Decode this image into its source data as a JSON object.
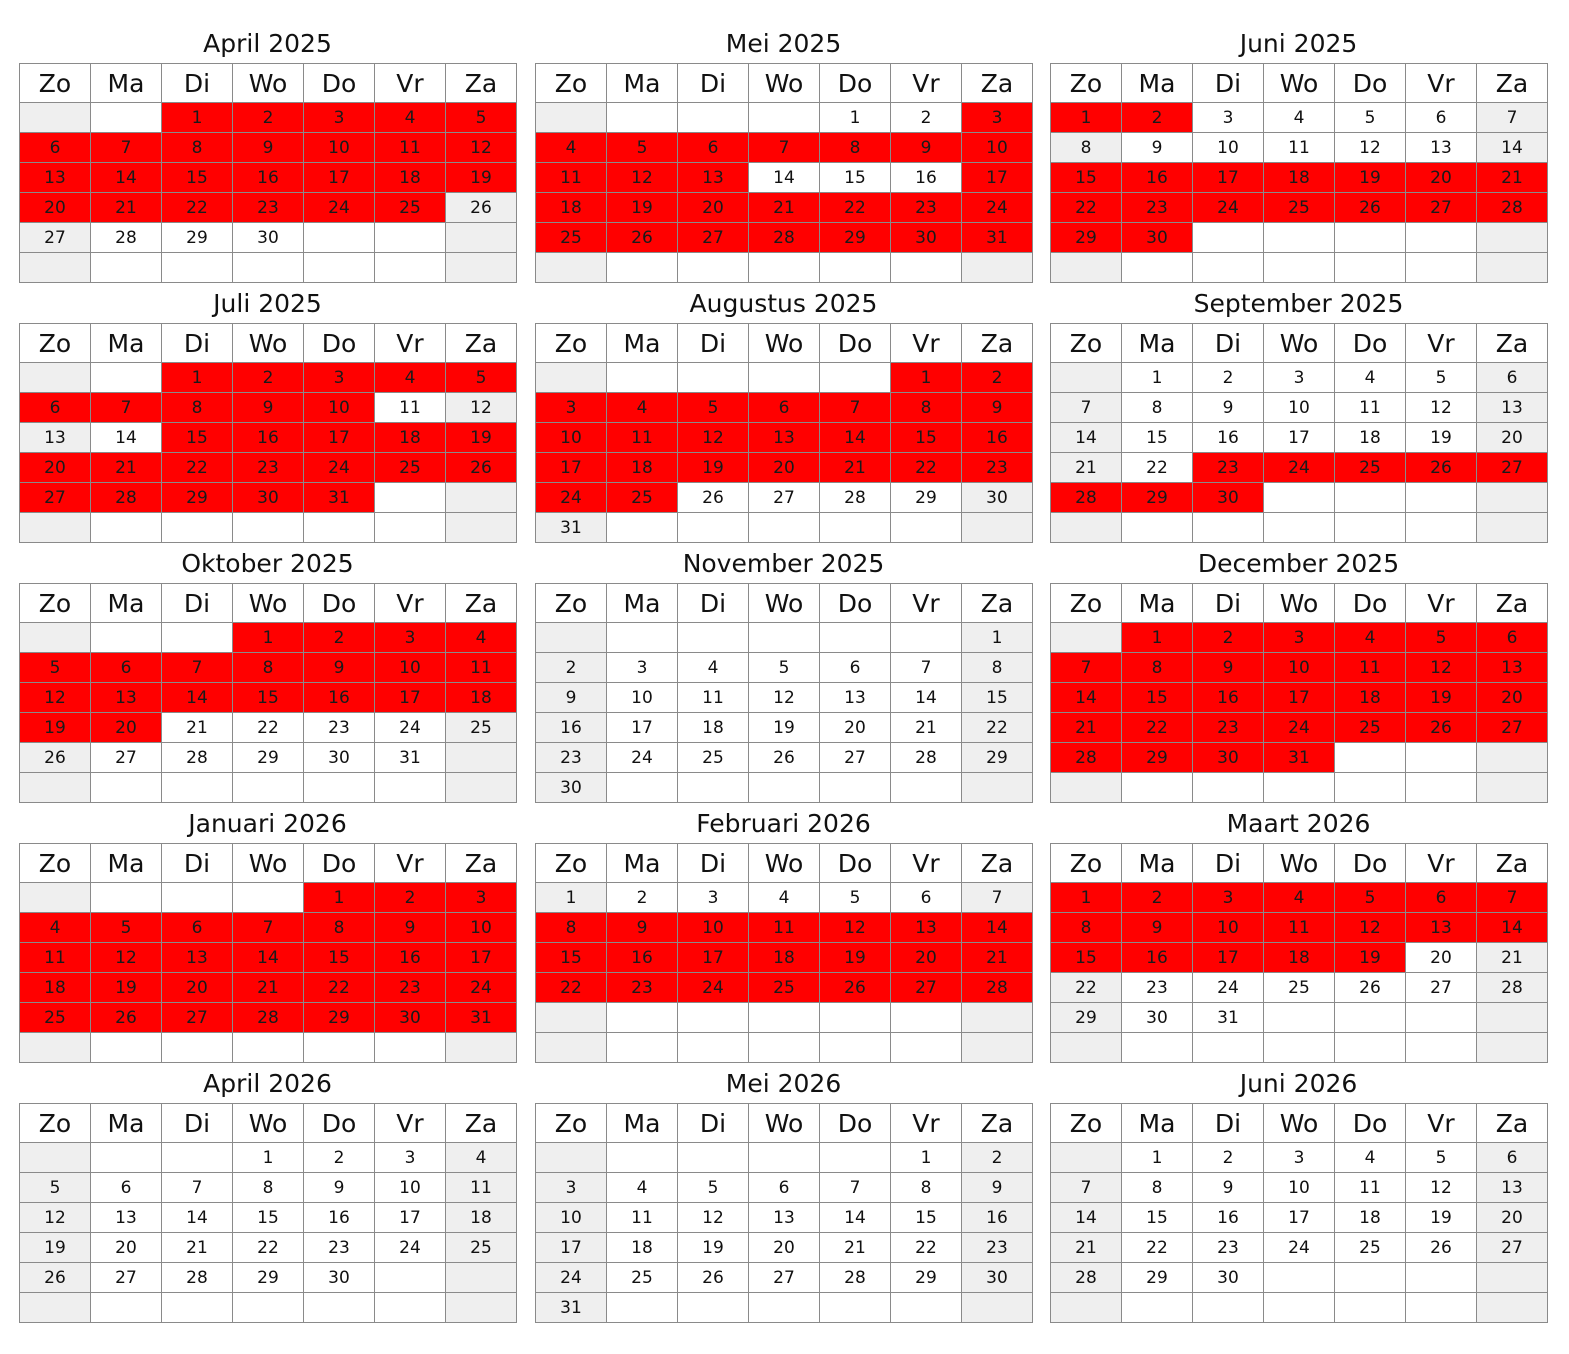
{
  "weekdays": [
    "Zo",
    "Ma",
    "Di",
    "Wo",
    "Do",
    "Vr",
    "Za"
  ],
  "highlight_color": "#ff0000",
  "weekend_color": "#efefef",
  "months": [
    {
      "title": "April 2025",
      "start": 2,
      "days": 30,
      "highlight": [
        1,
        2,
        3,
        4,
        5,
        6,
        7,
        8,
        9,
        10,
        11,
        12,
        13,
        14,
        15,
        16,
        17,
        18,
        19,
        20,
        21,
        22,
        23,
        24,
        25
      ]
    },
    {
      "title": "Mei 2025",
      "start": 4,
      "days": 31,
      "highlight": [
        3,
        4,
        5,
        6,
        7,
        8,
        9,
        10,
        11,
        12,
        13,
        17,
        18,
        19,
        20,
        21,
        22,
        23,
        24,
        25,
        26,
        27,
        28,
        29,
        30,
        31
      ]
    },
    {
      "title": "Juni 2025",
      "start": 0,
      "days": 30,
      "highlight": [
        1,
        2,
        15,
        16,
        17,
        18,
        19,
        20,
        21,
        22,
        23,
        24,
        25,
        26,
        27,
        28,
        29,
        30
      ]
    },
    {
      "title": "Juli 2025",
      "start": 2,
      "days": 31,
      "highlight": [
        1,
        2,
        3,
        4,
        5,
        6,
        7,
        8,
        9,
        10,
        15,
        16,
        17,
        18,
        19,
        20,
        21,
        22,
        23,
        24,
        25,
        26,
        27,
        28,
        29,
        30,
        31
      ]
    },
    {
      "title": "Augustus 2025",
      "start": 5,
      "days": 31,
      "highlight": [
        1,
        2,
        3,
        4,
        5,
        6,
        7,
        8,
        9,
        10,
        11,
        12,
        13,
        14,
        15,
        16,
        17,
        18,
        19,
        20,
        21,
        22,
        23,
        24,
        25
      ]
    },
    {
      "title": "September 2025",
      "start": 1,
      "days": 30,
      "highlight": [
        23,
        24,
        25,
        26,
        27,
        28,
        29,
        30
      ]
    },
    {
      "title": "Oktober 2025",
      "start": 3,
      "days": 31,
      "highlight": [
        1,
        2,
        3,
        4,
        5,
        6,
        7,
        8,
        9,
        10,
        11,
        12,
        13,
        14,
        15,
        16,
        17,
        18,
        19,
        20
      ]
    },
    {
      "title": "November 2025",
      "start": 6,
      "days": 30,
      "highlight": []
    },
    {
      "title": "December 2025",
      "start": 1,
      "days": 31,
      "highlight": [
        1,
        2,
        3,
        4,
        5,
        6,
        7,
        8,
        9,
        10,
        11,
        12,
        13,
        14,
        15,
        16,
        17,
        18,
        19,
        20,
        21,
        22,
        23,
        24,
        25,
        26,
        27,
        28,
        29,
        30,
        31
      ]
    },
    {
      "title": "Januari 2026",
      "start": 4,
      "days": 31,
      "highlight": [
        1,
        2,
        3,
        4,
        5,
        6,
        7,
        8,
        9,
        10,
        11,
        12,
        13,
        14,
        15,
        16,
        17,
        18,
        19,
        20,
        21,
        22,
        23,
        24,
        25,
        26,
        27,
        28,
        29,
        30,
        31
      ]
    },
    {
      "title": "Februari 2026",
      "start": 0,
      "days": 28,
      "highlight": [
        8,
        9,
        10,
        11,
        12,
        13,
        14,
        15,
        16,
        17,
        18,
        19,
        20,
        21,
        22,
        23,
        24,
        25,
        26,
        27,
        28
      ]
    },
    {
      "title": "Maart 2026",
      "start": 0,
      "days": 31,
      "highlight": [
        1,
        2,
        3,
        4,
        5,
        6,
        7,
        8,
        9,
        10,
        11,
        12,
        13,
        14,
        15,
        16,
        17,
        18,
        19
      ]
    },
    {
      "title": "April 2026",
      "start": 3,
      "days": 30,
      "highlight": []
    },
    {
      "title": "Mei 2026",
      "start": 5,
      "days": 31,
      "highlight": []
    },
    {
      "title": "Juni 2026",
      "start": 1,
      "days": 30,
      "highlight": []
    }
  ]
}
